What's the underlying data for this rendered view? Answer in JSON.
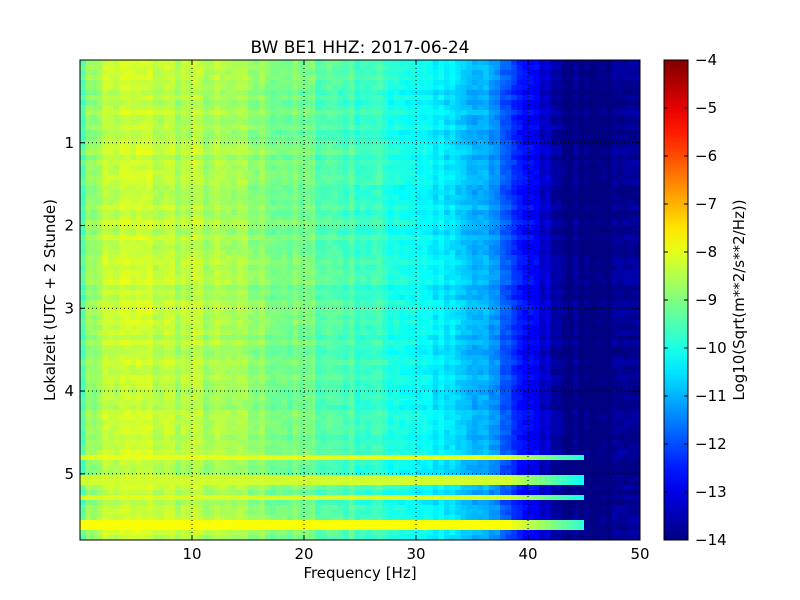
{
  "chart_data": {
    "type": "heatmap",
    "title": "BW BE1 HHZ: 2017-06-24",
    "xlabel": "Frequency [Hz]",
    "ylabel": "Lokalzeit (UTC + 2 Stunde)",
    "xlim": [
      0,
      50
    ],
    "ylim": [
      5.8,
      0
    ],
    "y_inverted": true,
    "x_ticks": [
      10,
      20,
      30,
      40,
      50
    ],
    "x_tick_labels": [
      "10",
      "20",
      "30",
      "40",
      "50"
    ],
    "y_ticks": [
      1,
      2,
      3,
      4,
      5
    ],
    "y_tick_labels": [
      "1",
      "2",
      "3",
      "4",
      "5"
    ],
    "grid": true,
    "colormap": "jet",
    "colorbar": {
      "label": "Log10(Sqrt(m**2/s**2/Hz))",
      "range": [
        -14,
        -4
      ],
      "ticks": [
        -4,
        -5,
        -6,
        -7,
        -8,
        -9,
        -10,
        -11,
        -12,
        -13,
        -14
      ],
      "tick_labels": [
        "−4",
        "−5",
        "−6",
        "−7",
        "−8",
        "−9",
        "−10",
        "−11",
        "−12",
        "−13",
        "−14"
      ]
    },
    "series": [
      {
        "profile": "mean spectral level vs frequency",
        "frequency_hz": [
          0,
          2,
          5,
          10,
          15,
          20,
          25,
          30,
          33,
          35,
          37,
          38,
          40,
          42,
          44,
          46,
          50
        ],
        "log10_psd": [
          -9.3,
          -8.4,
          -8.3,
          -8.5,
          -8.8,
          -9.2,
          -9.6,
          -10.1,
          -10.6,
          -11.0,
          -11.3,
          -11.9,
          -12.8,
          -13.4,
          -14.0,
          -14.0,
          -14.0
        ]
      },
      {
        "profile": "bright horizontal bands",
        "time_h": [
          4.78,
          5.08,
          5.28,
          5.62
        ],
        "log10_psd": [
          -8.0,
          -8.2,
          -8.1,
          -7.8
        ]
      }
    ]
  }
}
